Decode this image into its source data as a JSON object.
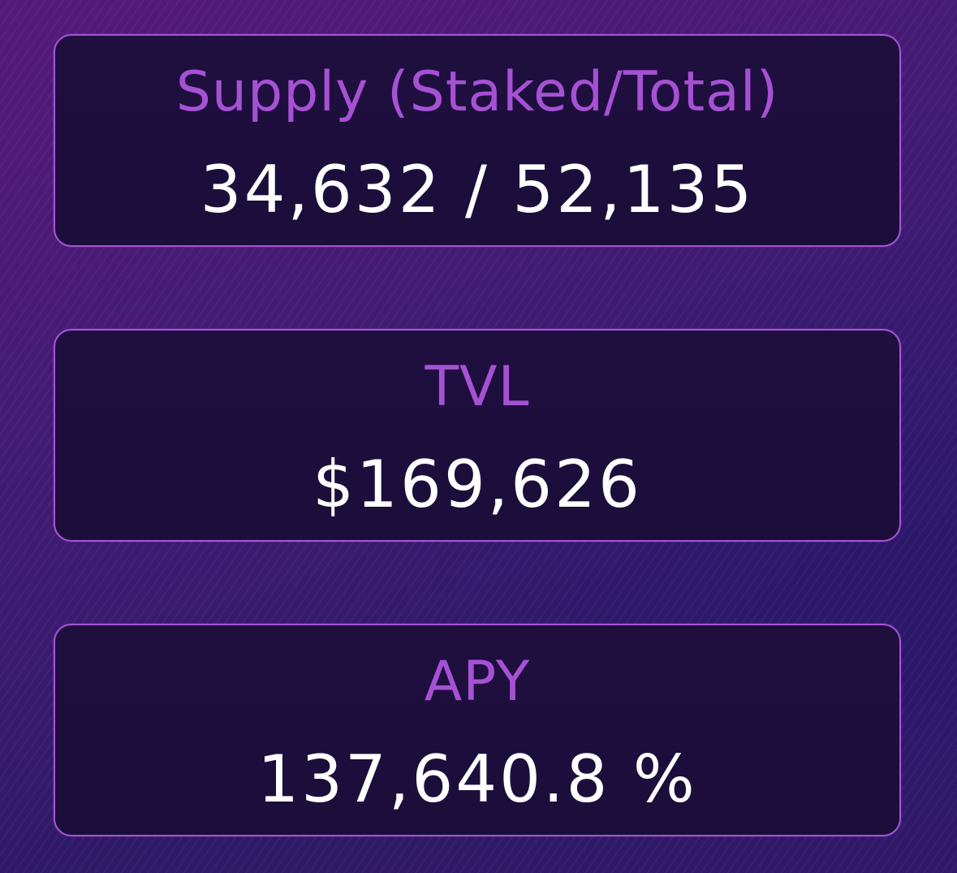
{
  "colors": {
    "accent": "#a651d4",
    "card_background": "#1d0e3c",
    "value_text": "#ffffff",
    "background": "#3f1b72"
  },
  "stats": [
    {
      "label": "Supply (Staked/Total)",
      "value": "34,632 / 52,135"
    },
    {
      "label": "TVL",
      "value": "$169,626"
    },
    {
      "label": "APY",
      "value": "137,640.8 %"
    }
  ]
}
